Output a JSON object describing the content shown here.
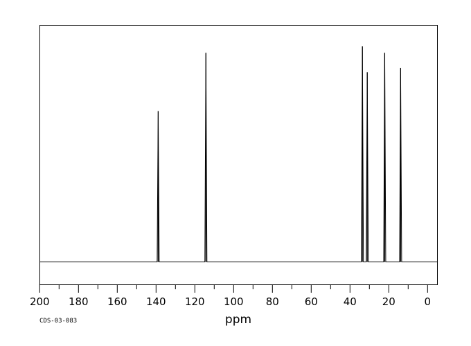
{
  "chart_data": {
    "type": "line",
    "title": "",
    "xlabel": "ppm",
    "ylabel": "",
    "xlim": [
      200,
      -5
    ],
    "x_reversed": true,
    "x_ticks": [
      200,
      180,
      160,
      140,
      120,
      100,
      80,
      60,
      40,
      20,
      0
    ],
    "x_tick_labels": [
      "200",
      "180",
      "160",
      "140",
      "120",
      "100",
      "80",
      "60",
      "40",
      "20",
      "0"
    ],
    "grid": false,
    "peaks": [
      {
        "ppm": 138.9,
        "intensity": 70
      },
      {
        "ppm": 114.3,
        "intensity": 97
      },
      {
        "ppm": 33.6,
        "intensity": 100
      },
      {
        "ppm": 31.1,
        "intensity": 88
      },
      {
        "ppm": 22.1,
        "intensity": 97
      },
      {
        "ppm": 13.9,
        "intensity": 90
      }
    ],
    "annotation": "CDS-03-083",
    "line_color": "#000000"
  }
}
